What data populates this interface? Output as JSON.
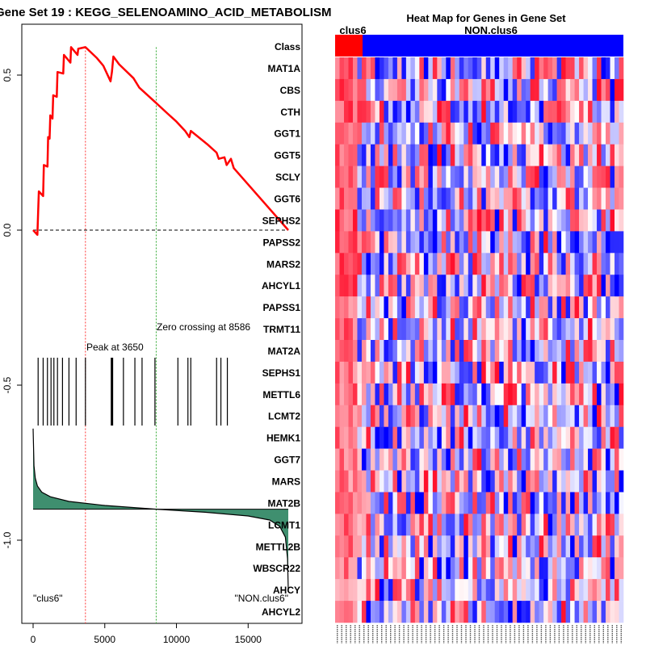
{
  "chart_data": [
    {
      "type": "line",
      "title": "Gene Set  19 : KEGG_SELENOAMINO_ACID_METABOLISM",
      "x_ticks": [
        0,
        5000,
        10000,
        15000
      ],
      "x_tick_labels": [
        "0",
        "5000",
        "10000",
        "15000"
      ],
      "xlim": [
        0,
        17800
      ],
      "y_ticks": [
        0.5,
        0.0,
        -0.5,
        -1.0
      ],
      "y_tick_labels": [
        "0.5",
        "0.0",
        "-0.5",
        "-1.0"
      ],
      "ylim": [
        -1.2,
        0.6
      ],
      "running_enrichment_score": {
        "x": [
          0,
          300,
          400,
          700,
          750,
          1000,
          1050,
          1150,
          1200,
          1350,
          1400,
          1650,
          1700,
          2100,
          2150,
          2600,
          2650,
          3100,
          3150,
          3650,
          4450,
          4900,
          5400,
          5500,
          5600,
          6000,
          7000,
          7400,
          8586,
          9400,
          10000,
          10600,
          10900,
          11000,
          12200,
          12800,
          12950,
          13350,
          13500,
          13800,
          14000,
          17800
        ],
        "y": [
          0.0,
          -0.015,
          0.125,
          0.11,
          0.21,
          0.205,
          0.3,
          0.295,
          0.37,
          0.36,
          0.435,
          0.43,
          0.51,
          0.505,
          0.565,
          0.54,
          0.59,
          0.565,
          0.585,
          0.59,
          0.555,
          0.53,
          0.48,
          0.51,
          0.56,
          0.535,
          0.49,
          0.46,
          0.41,
          0.375,
          0.35,
          0.32,
          0.3,
          0.32,
          0.275,
          0.25,
          0.23,
          0.235,
          0.21,
          0.23,
          0.2,
          0.0
        ]
      },
      "hit_positions": [
        350,
        700,
        1000,
        1250,
        1450,
        1700,
        2050,
        2500,
        3000,
        3650,
        5450,
        5500,
        5550,
        6300,
        7100,
        7600,
        8500,
        10100,
        10800,
        11000,
        12800,
        13100,
        13550
      ],
      "ranked_metric_curve": {
        "x": [
          0,
          60,
          150,
          300,
          600,
          1200,
          2500,
          5000,
          8586,
          12000,
          15000,
          16500,
          17200,
          17600,
          17750,
          17800
        ],
        "y": [
          -0.64,
          -0.76,
          -0.8,
          -0.825,
          -0.845,
          -0.86,
          -0.875,
          -0.888,
          -0.9,
          -0.91,
          -0.922,
          -0.935,
          -0.955,
          -0.99,
          -1.06,
          -1.16
        ]
      },
      "metric_baseline": -0.9,
      "peak_position": 3650,
      "zero_crossing": 8586,
      "annotations": {
        "peak": "Peak at 3650",
        "zero": "Zero crossing at 8586",
        "left": "\"clus6\"",
        "right": "\"NON.clus6\""
      },
      "colors": {
        "es_line": "#ff0000",
        "fill": "#3f8f6f",
        "peak_line": "#ff3333",
        "zero_line": "#33aa33"
      }
    },
    {
      "type": "heatmap",
      "title": "Heat Map for Genes in Gene Set",
      "class_labels": [
        "clus6",
        "NON.clus6"
      ],
      "class_row_label": "Class",
      "genes": [
        "MAT1A",
        "CBS",
        "CTH",
        "GGT1",
        "GGT5",
        "SCLY",
        "GGT6",
        "SEPHS2",
        "PAPSS2",
        "MARS2",
        "AHCYL1",
        "PAPSS1",
        "TRMT11",
        "MAT2A",
        "SEPHS1",
        "METTL6",
        "LCMT2",
        "HEMK1",
        "GGT7",
        "MARS",
        "MAT2B",
        "LCMT1",
        "METTL2B",
        "WBSCR22",
        "AHCY",
        "AHCYL2"
      ],
      "n_samples": 65,
      "n_clus6": 5,
      "colors": {
        "class_clus6": "#ff0000",
        "class_other": "#0000ff"
      }
    }
  ]
}
